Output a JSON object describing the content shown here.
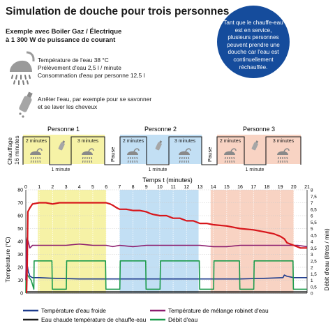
{
  "title": "Simulation de douche pour trois personnes",
  "subtitle_line1": "Exemple avec Boiler Gaz / Électrique",
  "subtitle_line2": "à 1 300 W de puissance de courant",
  "bubble_text": "Tant que le chauffe-eau est en service, plusieurs personnes peuvent prendre une douche car l'eau est continuellement réchauffée.",
  "info_lines": [
    "Température de l'eau 38 °C",
    "Prélèvement d'eau 2,5 l / minute",
    "Consommation d'eau par personne 12,5 l"
  ],
  "soap_lines": [
    "Arrêter l'eau, par exemple pour se savonner",
    "et se laver les cheveux"
  ],
  "timeline": {
    "chauffage_line1": "Chauffage",
    "chauffage_line2": "16 minutes",
    "persons": [
      "Personne 1",
      "Personne 2",
      "Personne 3"
    ],
    "shower_a": "2 minutes",
    "shower_b": "3 minutes",
    "pause_1min": "1 minute",
    "pause_label": "Pause"
  },
  "colors": {
    "yellow": "#f6f2a6",
    "blue": "#c2dff4",
    "salmon": "#f8d3c3",
    "brand_blue": "#154c9c",
    "red": "#d7161b",
    "purple": "#8c1c6e",
    "green": "#1b9a4a",
    "dark_blue": "#1d3b8c"
  },
  "chart_data": {
    "type": "line",
    "xlabel": "Temps t (minutes)",
    "ylabel_left": "Température (°C)",
    "ylabel_right": "Débit d'eau (litres / min)",
    "xlim": [
      0,
      21
    ],
    "ylim_left": [
      0,
      80
    ],
    "ylim_right": [
      0,
      8
    ],
    "x_ticks": [
      "0",
      "1",
      "2",
      "3",
      "4",
      "5",
      "6",
      "7",
      "8",
      "9",
      "10",
      "11",
      "12",
      "13",
      "14",
      "15",
      "16",
      "17",
      "18",
      "19",
      "20",
      "21"
    ],
    "y_left_ticks": [
      "0",
      "10",
      "20",
      "30",
      "40",
      "50",
      "60",
      "70",
      "80"
    ],
    "y_right_ticks": [
      "0",
      "0,5",
      "1",
      "1,5",
      "2",
      "2,5",
      "3",
      "3,5",
      "4",
      "4,5",
      "5",
      "5,5",
      "6",
      "6,5",
      "7",
      "7,5",
      "8"
    ],
    "shaded_ranges": [
      {
        "person": "Personne 1",
        "from": 0.9,
        "to": 6.0
      },
      {
        "person": "Personne 2",
        "from": 7.0,
        "to": 12.9
      },
      {
        "person": "Personne 3",
        "from": 13.8,
        "to": 20.0
      }
    ],
    "series": [
      {
        "name": "Température d'eau froide",
        "axis": "left",
        "color": "#1d3b8c",
        "x": [
          0,
          0.1,
          0.2,
          0.25,
          0.3,
          0.5,
          1,
          2,
          4,
          6,
          8,
          10,
          12,
          14,
          16,
          18,
          19.2,
          19.3,
          19.5,
          20,
          20.5,
          21
        ],
        "y": [
          22,
          22,
          16,
          15,
          13,
          12,
          12,
          11.5,
          11,
          11,
          11,
          11,
          11,
          11,
          11,
          11.5,
          12,
          14,
          13,
          12,
          12,
          12
        ]
      },
      {
        "name": "Eau chaude température de chauffe-eau",
        "axis": "left",
        "color": "#1a1a1a",
        "x": [
          0,
          21
        ],
        "y": [
          1,
          1
        ]
      },
      {
        "name": "Température de mélange robinet d'eau",
        "axis": "left",
        "color": "#8c1c6e",
        "x": [
          0,
          0.05,
          0.1,
          0.3,
          0.5,
          1,
          2,
          3,
          4,
          5,
          6,
          6.5,
          7,
          8,
          9,
          10,
          11,
          12,
          13,
          14,
          15,
          16,
          17,
          18,
          19,
          20,
          20.3,
          21
        ],
        "y": [
          10,
          40,
          43,
          35,
          37,
          37,
          37,
          37,
          38,
          37,
          37,
          36,
          37,
          36,
          37,
          37,
          37,
          37,
          37,
          36,
          36,
          37,
          37,
          37,
          37,
          37,
          37,
          36
        ]
      },
      {
        "name": "Débit d'eau",
        "axis": "right",
        "color": "#1b9a4a",
        "x": [
          0,
          0.02,
          0.05,
          0.4,
          0.6,
          0.62,
          1.95,
          1.98,
          3.02,
          3.05,
          5.95,
          5.98,
          7.02,
          7.05,
          8.95,
          8.98,
          10.02,
          10.05,
          12.95,
          12.98,
          14.02,
          14.05,
          15.95,
          15.98,
          17.02,
          17.05,
          19.95,
          19.98,
          21
        ],
        "y": [
          0,
          2.5,
          1.5,
          1,
          0.3,
          2.5,
          2.5,
          0.3,
          0.3,
          2.5,
          2.5,
          0.3,
          0.3,
          2.5,
          2.5,
          0.3,
          0.3,
          2.5,
          2.5,
          0.3,
          0.3,
          2.5,
          2.5,
          0.3,
          0.3,
          2.5,
          2.5,
          0.3,
          0.3
        ]
      },
      {
        "name": "",
        "axis": "left",
        "color": "#d7161b",
        "x": [
          0.05,
          0.1,
          0.15,
          0.3,
          0.5,
          1,
          1.5,
          2,
          2.5,
          3,
          4,
          5,
          6,
          6.3,
          6.5,
          6.8,
          7,
          7.5,
          8,
          8.5,
          9,
          9.2,
          9.5,
          10,
          10.5,
          11,
          11.5,
          12,
          12.5,
          13,
          13.5,
          14,
          15,
          16,
          17,
          18,
          18.5,
          19,
          19.3,
          19.5,
          20,
          20.5,
          21
        ],
        "y": [
          0,
          20,
          63,
          66,
          69,
          70,
          70,
          69,
          70,
          70,
          70,
          70,
          70,
          69,
          68,
          66,
          65,
          65,
          64,
          64,
          63,
          62,
          61,
          60,
          60,
          58,
          58,
          56,
          56,
          54,
          54,
          53,
          52,
          50,
          49,
          47,
          46,
          44,
          42,
          39,
          37,
          35,
          35
        ]
      }
    ]
  },
  "legend": [
    {
      "label": "Température d'eau froide",
      "color": "#1d3b8c"
    },
    {
      "label": "Température de mélange robinet d'eau",
      "color": "#8c1c6e"
    },
    {
      "label": "Eau chaude température de chauffe-eau",
      "color": "#1a1a1a"
    },
    {
      "label": "Débit d'eau",
      "color": "#1b9a4a"
    }
  ]
}
